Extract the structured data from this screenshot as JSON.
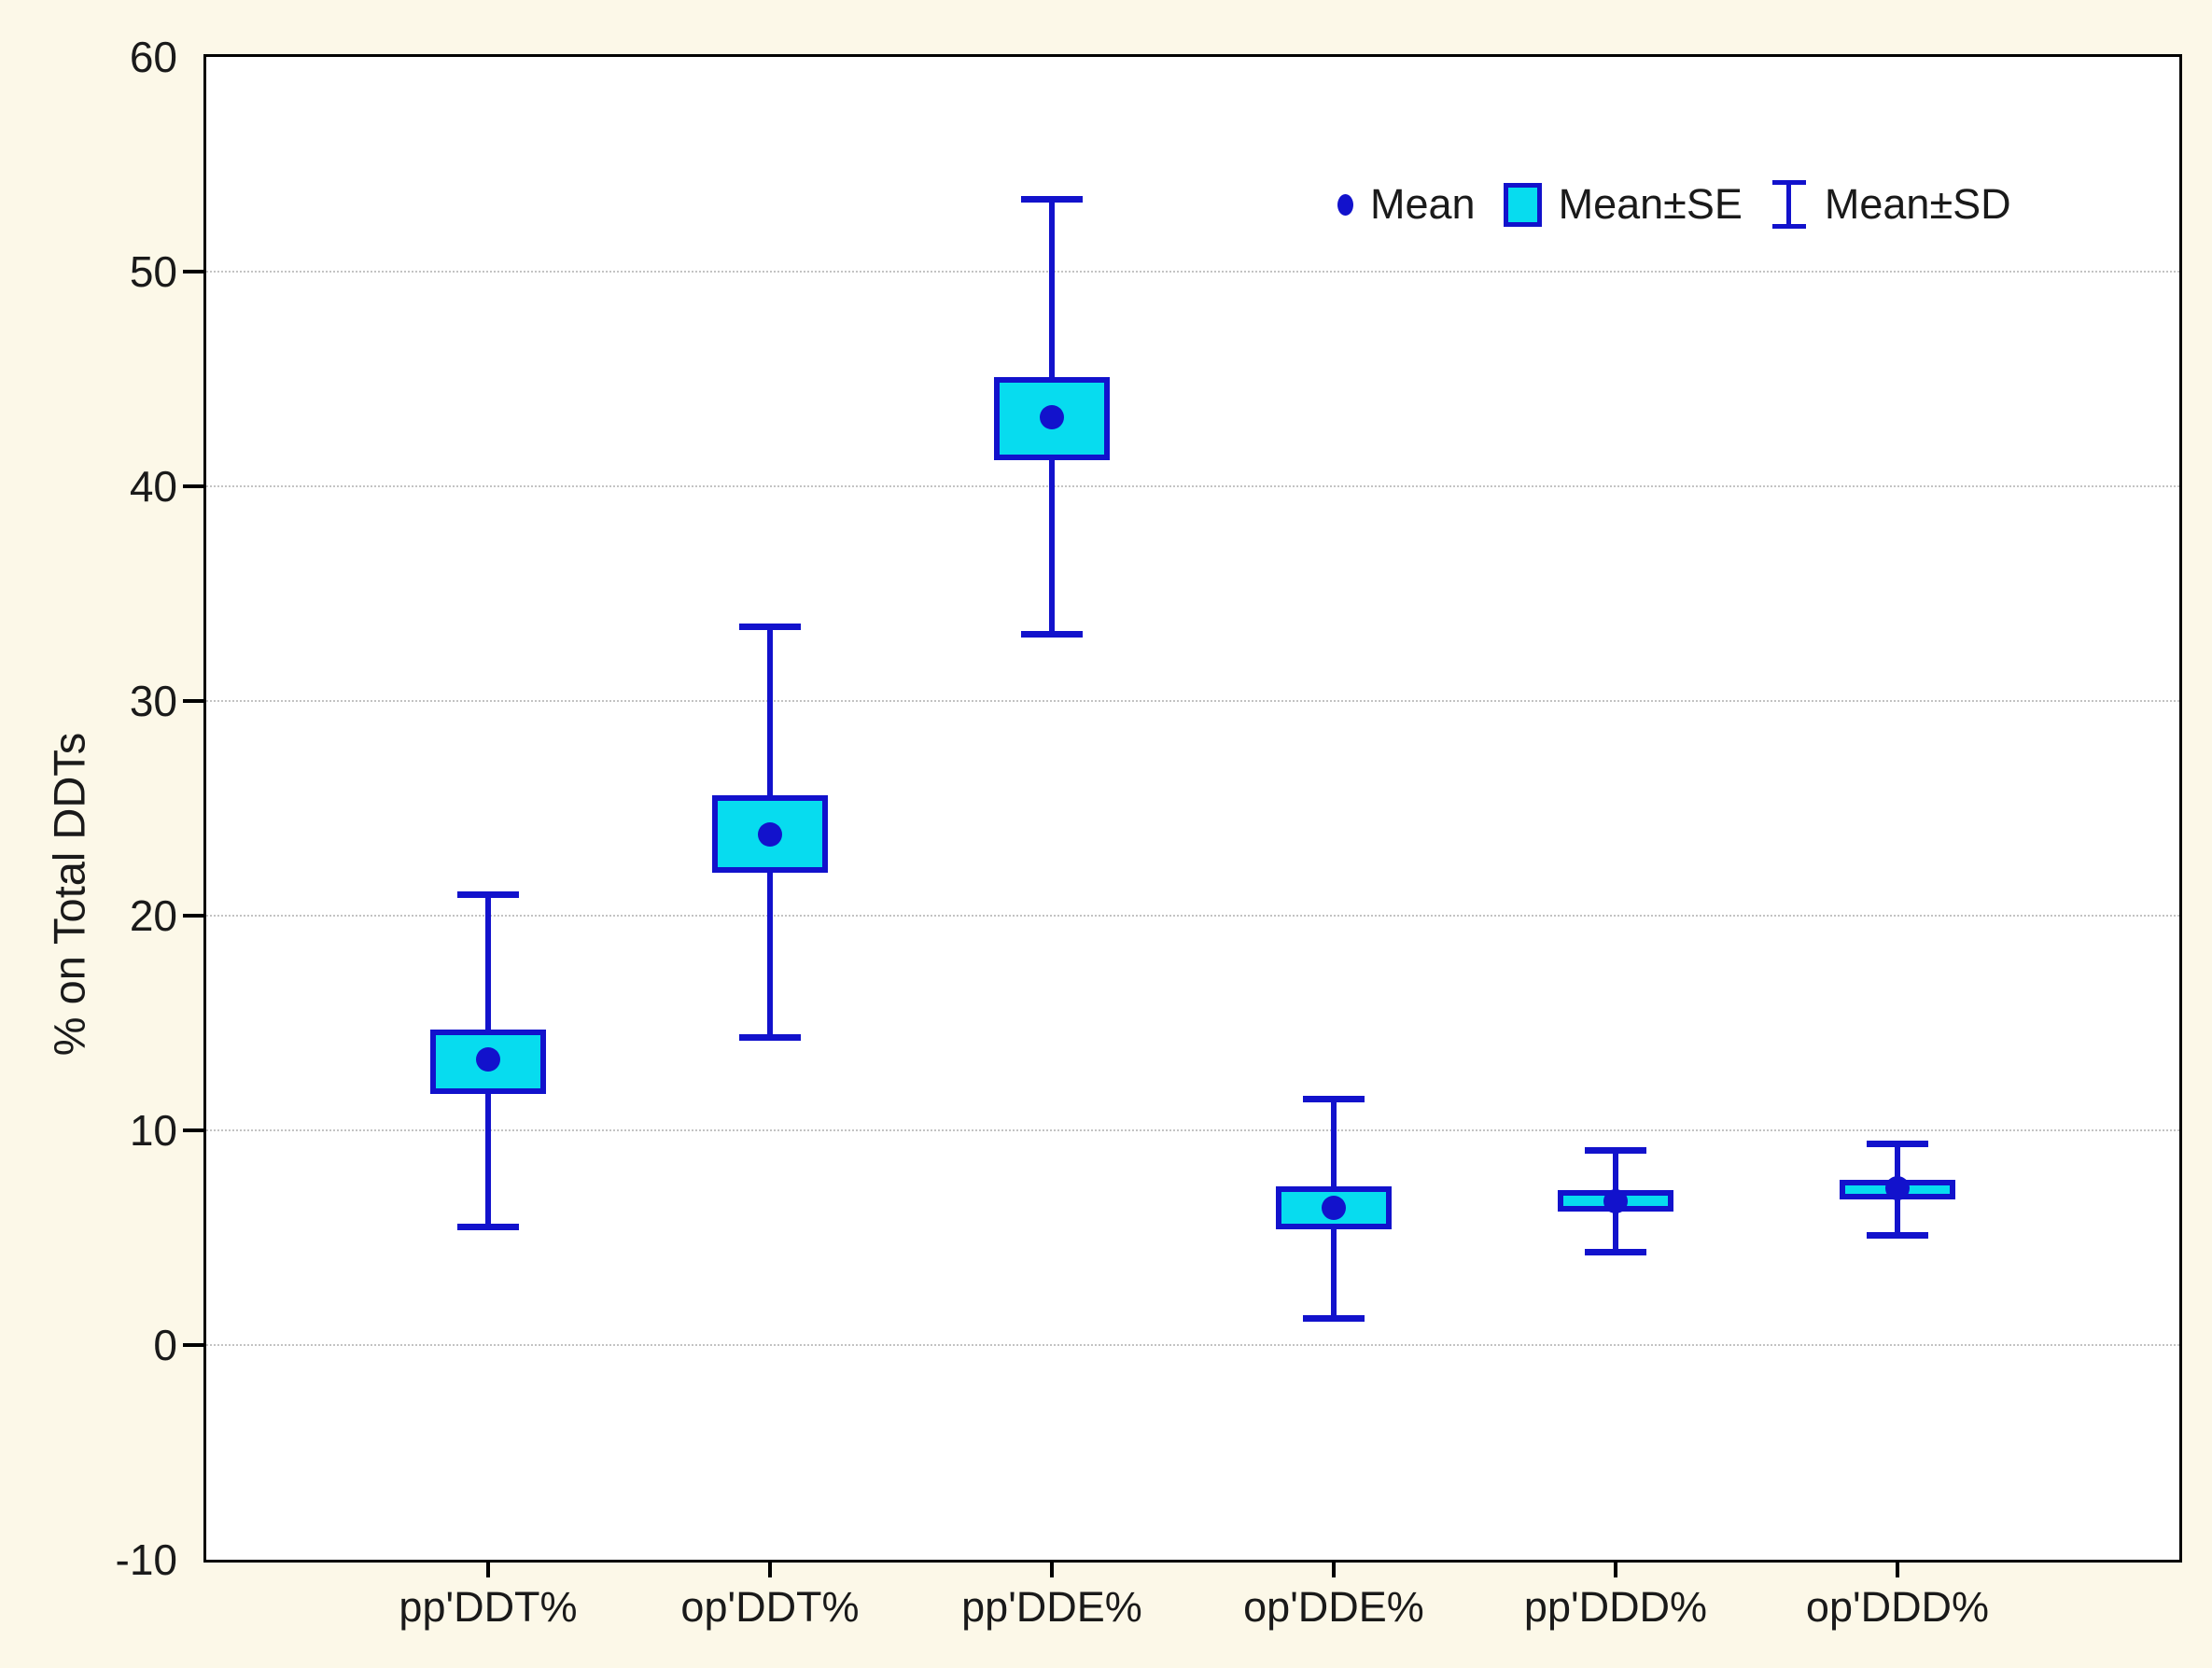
{
  "figure": {
    "background_color": "#FCF8E8",
    "plot_background_color": "#FFFFFF",
    "line_color": "#1212CC",
    "box_fill_color": "#07DCEF",
    "grid_color": "#C3C3C3"
  },
  "y_axis": {
    "title": "% on Total DDTs",
    "ticks": [
      60,
      50,
      40,
      30,
      20,
      10,
      0,
      -10
    ],
    "grid_values": [
      50,
      40,
      30,
      20,
      10,
      0
    ]
  },
  "x_axis": {
    "categories": [
      "pp'DDT%",
      "op'DDT%",
      "pp'DDE%",
      "op'DDE%",
      "pp'DDD%",
      "op'DDD%"
    ]
  },
  "legend": {
    "items": [
      {
        "symbol": "mean-dot",
        "label": "Mean"
      },
      {
        "symbol": "se-box",
        "label": "Mean±SE"
      },
      {
        "symbol": "sd-whisker",
        "label": "Mean±SD"
      }
    ]
  },
  "chart_data": {
    "type": "box",
    "title": "",
    "xlabel": "",
    "ylabel": "% on Total DDTs",
    "ylim": [
      -10,
      60
    ],
    "grid": "horizontal-dotted",
    "legend_position": "top-right-inside",
    "categories": [
      "pp'DDT%",
      "op'DDT%",
      "pp'DDE%",
      "op'DDE%",
      "pp'DDD%",
      "op'DDD%"
    ],
    "series": [
      {
        "category": "pp'DDT%",
        "mean": 13.3,
        "se_low": 11.7,
        "se_high": 14.7,
        "sd_low": 5.5,
        "sd_high": 21.0
      },
      {
        "category": "op'DDT%",
        "mean": 23.8,
        "se_low": 22.0,
        "se_high": 25.6,
        "sd_low": 14.3,
        "sd_high": 33.5
      },
      {
        "category": "pp'DDE%",
        "mean": 43.2,
        "se_low": 41.2,
        "se_high": 45.1,
        "sd_low": 33.1,
        "sd_high": 53.4
      },
      {
        "category": "op'DDE%",
        "mean": 6.4,
        "se_low": 5.4,
        "se_high": 7.4,
        "sd_low": 1.2,
        "sd_high": 11.5
      },
      {
        "category": "pp'DDD%",
        "mean": 6.7,
        "se_low": 6.2,
        "se_high": 7.2,
        "sd_low": 4.3,
        "sd_high": 9.1
      },
      {
        "category": "op'DDD%",
        "mean": 7.3,
        "se_low": 6.8,
        "se_high": 7.7,
        "sd_low": 5.1,
        "sd_high": 9.4
      }
    ]
  }
}
